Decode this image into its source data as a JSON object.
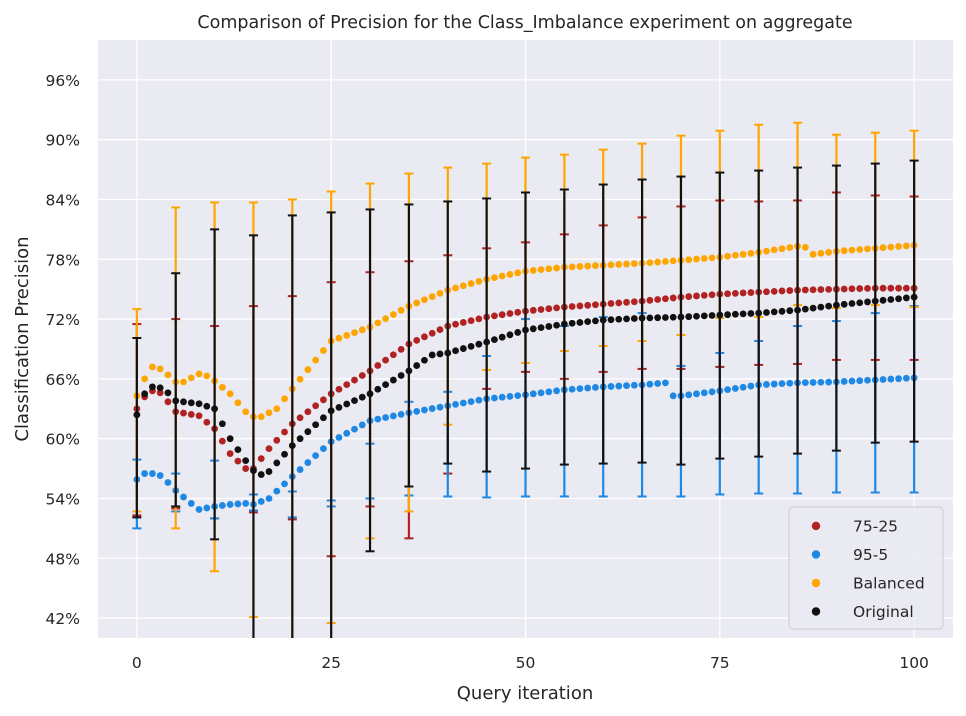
{
  "chart_data": {
    "type": "scatter",
    "title": "Comparison of Precision for the Class_Imbalance experiment on aggregate",
    "xlabel": "Query iteration",
    "ylabel": "Classification Precision",
    "xlim": [
      -5,
      105
    ],
    "ylim": [
      0.4,
      1.0
    ],
    "xticks": [
      0,
      25,
      50,
      75,
      100
    ],
    "xtick_labels": [
      "0",
      "25",
      "50",
      "75",
      "100"
    ],
    "yticks": [
      0.42,
      0.48,
      0.54,
      0.6,
      0.66,
      0.72,
      0.78,
      0.84,
      0.9,
      0.96
    ],
    "ytick_labels": [
      "42%",
      "48%",
      "54%",
      "60%",
      "66%",
      "72%",
      "78%",
      "84%",
      "90%",
      "96%"
    ],
    "grid": true,
    "legend_position": "bottom-right",
    "error_bars_every": 5,
    "background": "#eaeaf2",
    "series": [
      {
        "name": "75-25",
        "color": "#b22222",
        "anchors": [
          [
            0,
            0.63
          ],
          [
            1,
            0.642
          ],
          [
            2,
            0.648
          ],
          [
            3,
            0.646
          ],
          [
            4,
            0.637
          ],
          [
            5,
            0.627
          ],
          [
            8,
            0.623
          ],
          [
            10,
            0.61
          ],
          [
            12,
            0.585
          ],
          [
            14,
            0.57
          ],
          [
            15,
            0.57
          ],
          [
            17,
            0.59
          ],
          [
            20,
            0.615
          ],
          [
            25,
            0.645
          ],
          [
            30,
            0.668
          ],
          [
            35,
            0.695
          ],
          [
            40,
            0.713
          ],
          [
            45,
            0.722
          ],
          [
            50,
            0.728
          ],
          [
            55,
            0.732
          ],
          [
            60,
            0.735
          ],
          [
            65,
            0.738
          ],
          [
            70,
            0.742
          ],
          [
            75,
            0.745
          ],
          [
            80,
            0.747
          ],
          [
            85,
            0.749
          ],
          [
            90,
            0.75
          ],
          [
            95,
            0.751
          ],
          [
            100,
            0.751
          ]
        ],
        "err_upper": [
          0.715,
          0.72,
          0.713,
          0.733,
          0.743,
          0.757,
          0.767,
          0.778,
          0.784,
          0.791,
          0.797,
          0.805,
          0.814,
          0.822,
          0.833,
          0.839,
          0.838,
          0.839,
          0.847,
          0.844,
          0.843
        ],
        "err_lower": [
          0.523,
          0.53,
          0.52,
          0.526,
          0.519,
          0.482,
          0.532,
          0.5,
          0.565,
          0.65,
          0.667,
          0.66,
          0.667,
          0.67,
          0.67,
          0.672,
          0.674,
          0.675,
          0.679,
          0.679,
          0.679
        ]
      },
      {
        "name": "95-5",
        "color": "#1e88e5",
        "anchors": [
          [
            0,
            0.559
          ],
          [
            1,
            0.565
          ],
          [
            2,
            0.565
          ],
          [
            3,
            0.563
          ],
          [
            4,
            0.556
          ],
          [
            5,
            0.548
          ],
          [
            7,
            0.535
          ],
          [
            8,
            0.529
          ],
          [
            10,
            0.532
          ],
          [
            12,
            0.534
          ],
          [
            14,
            0.535
          ],
          [
            15,
            0.534
          ],
          [
            17,
            0.54
          ],
          [
            20,
            0.562
          ],
          [
            25,
            0.597
          ],
          [
            30,
            0.618
          ],
          [
            35,
            0.626
          ],
          [
            40,
            0.633
          ],
          [
            45,
            0.64
          ],
          [
            50,
            0.644
          ],
          [
            55,
            0.649
          ],
          [
            60,
            0.652
          ],
          [
            65,
            0.654
          ],
          [
            68,
            0.656
          ],
          [
            69,
            0.643
          ],
          [
            70,
            0.643
          ],
          [
            75,
            0.648
          ],
          [
            80,
            0.654
          ],
          [
            85,
            0.656
          ],
          [
            90,
            0.657
          ],
          [
            95,
            0.659
          ],
          [
            100,
            0.661
          ]
        ],
        "err_upper": [
          0.579,
          0.565,
          0.578,
          0.544,
          0.547,
          0.532,
          0.595,
          0.637,
          0.647,
          0.683,
          0.72,
          0.713,
          0.722,
          0.726,
          0.673,
          0.686,
          0.698,
          0.713,
          0.718,
          0.726,
          0.733
        ],
        "err_lower": [
          0.51,
          0.527,
          0.52,
          0.528,
          0.521,
          0.538,
          0.54,
          0.543,
          0.542,
          0.541,
          0.542,
          0.542,
          0.542,
          0.542,
          0.542,
          0.544,
          0.545,
          0.545,
          0.546,
          0.546,
          0.546
        ]
      },
      {
        "name": "Balanced",
        "color": "#ffa500",
        "anchors": [
          [
            0,
            0.643
          ],
          [
            1,
            0.66
          ],
          [
            2,
            0.672
          ],
          [
            3,
            0.67
          ],
          [
            4,
            0.664
          ],
          [
            5,
            0.657
          ],
          [
            6,
            0.657
          ],
          [
            8,
            0.665
          ],
          [
            9,
            0.663
          ],
          [
            10,
            0.658
          ],
          [
            12,
            0.645
          ],
          [
            14,
            0.627
          ],
          [
            15,
            0.622
          ],
          [
            16,
            0.622
          ],
          [
            18,
            0.63
          ],
          [
            20,
            0.65
          ],
          [
            25,
            0.698
          ],
          [
            30,
            0.712
          ],
          [
            35,
            0.733
          ],
          [
            40,
            0.749
          ],
          [
            45,
            0.76
          ],
          [
            50,
            0.768
          ],
          [
            55,
            0.772
          ],
          [
            60,
            0.774
          ],
          [
            65,
            0.776
          ],
          [
            70,
            0.779
          ],
          [
            75,
            0.782
          ],
          [
            80,
            0.787
          ],
          [
            85,
            0.793
          ],
          [
            86,
            0.792
          ],
          [
            87,
            0.785
          ],
          [
            88,
            0.786
          ],
          [
            90,
            0.788
          ],
          [
            95,
            0.791
          ],
          [
            100,
            0.794
          ]
        ],
        "err_upper": [
          0.73,
          0.832,
          0.837,
          0.837,
          0.84,
          0.848,
          0.856,
          0.866,
          0.872,
          0.876,
          0.882,
          0.885,
          0.89,
          0.896,
          0.904,
          0.909,
          0.915,
          0.917,
          0.905,
          0.907,
          0.909
        ],
        "err_lower": [
          0.527,
          0.51,
          0.467,
          0.421,
          0.395,
          0.415,
          0.5,
          0.527,
          0.614,
          0.669,
          0.676,
          0.688,
          0.693,
          0.698,
          0.704,
          0.721,
          0.722,
          0.734,
          0.731,
          0.734,
          0.732
        ]
      },
      {
        "name": "Original",
        "color": "#111111",
        "anchors": [
          [
            0,
            0.624
          ],
          [
            1,
            0.645
          ],
          [
            2,
            0.652
          ],
          [
            3,
            0.651
          ],
          [
            4,
            0.646
          ],
          [
            5,
            0.638
          ],
          [
            8,
            0.635
          ],
          [
            10,
            0.63
          ],
          [
            12,
            0.6
          ],
          [
            14,
            0.578
          ],
          [
            15,
            0.568
          ],
          [
            16,
            0.564
          ],
          [
            17,
            0.567
          ],
          [
            20,
            0.593
          ],
          [
            25,
            0.628
          ],
          [
            30,
            0.645
          ],
          [
            35,
            0.668
          ],
          [
            38,
            0.684
          ],
          [
            40,
            0.686
          ],
          [
            45,
            0.697
          ],
          [
            50,
            0.709
          ],
          [
            55,
            0.715
          ],
          [
            60,
            0.719
          ],
          [
            65,
            0.721
          ],
          [
            70,
            0.722
          ],
          [
            75,
            0.724
          ],
          [
            80,
            0.726
          ],
          [
            85,
            0.729
          ],
          [
            90,
            0.734
          ],
          [
            95,
            0.738
          ],
          [
            100,
            0.742
          ]
        ],
        "err_upper": [
          0.701,
          0.766,
          0.81,
          0.804,
          0.824,
          0.827,
          0.83,
          0.835,
          0.838,
          0.841,
          0.847,
          0.85,
          0.855,
          0.86,
          0.863,
          0.867,
          0.869,
          0.872,
          0.874,
          0.876,
          0.879
        ],
        "err_lower": [
          0.521,
          0.532,
          0.499,
          0.35,
          0.3,
          0.3,
          0.487,
          0.552,
          0.575,
          0.567,
          0.57,
          0.574,
          0.575,
          0.576,
          0.574,
          0.58,
          0.582,
          0.585,
          0.588,
          0.596,
          0.597
        ]
      }
    ]
  }
}
